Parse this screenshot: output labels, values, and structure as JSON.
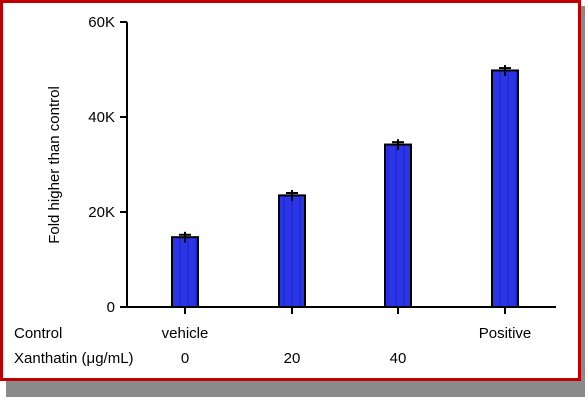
{
  "colors": {
    "frame_border": "#c00000",
    "bar_fill": "#2b35e8",
    "bar_stroke": "#000000",
    "axis": "#000000",
    "error_bar": "#000000"
  },
  "chart_data": {
    "type": "bar",
    "title": "",
    "xlabel": "",
    "ylabel": "Fold higher than control",
    "ylim": [
      0,
      60000
    ],
    "yticks": [
      0,
      20000,
      40000,
      60000
    ],
    "yticklabels": [
      "0",
      "20K",
      "40K",
      "60K"
    ],
    "grid": false,
    "legend": "none",
    "categories": [
      "vehicle",
      "20",
      "40",
      "Positive"
    ],
    "values": [
      14700,
      23500,
      34200,
      49800
    ],
    "errors": [
      500,
      500,
      500,
      500
    ],
    "x_table": [
      {
        "label": "Control",
        "values": [
          "vehicle",
          "",
          "",
          "Positive"
        ]
      },
      {
        "label": "Xanthatin (μg/mL)",
        "values": [
          "0",
          "20",
          "40",
          ""
        ]
      }
    ]
  }
}
